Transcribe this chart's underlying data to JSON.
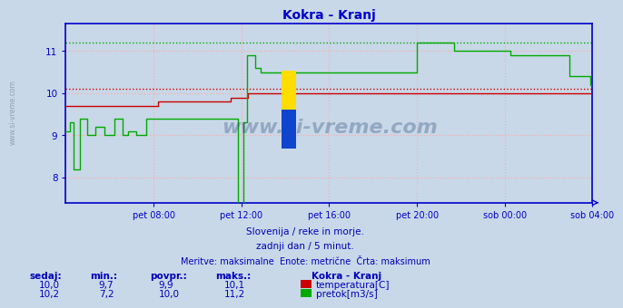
{
  "title": "Kokra - Kranj",
  "title_color": "#0000cc",
  "bg_color": "#c8d8e8",
  "plot_bg_color": "#c8d8e8",
  "grid_color": "#ffaaaa",
  "axis_color": "#0000cc",
  "tick_label_color": "#0000cc",
  "ylim": [
    7.4,
    11.65
  ],
  "yticks": [
    8,
    9,
    10,
    11
  ],
  "temp_color": "#cc0000",
  "flow_color": "#00aa00",
  "temp_avg": 10.1,
  "flow_max": 11.2,
  "watermark": "www.si-vreme.com",
  "watermark_color": "#1a3a6b",
  "footer_line1": "Slovenija / reke in morje.",
  "footer_line2": "zadnji dan / 5 minut.",
  "footer_line3": "Meritve: maksimalne  Enote: metrične  Črta: maksimum",
  "footer_color": "#0000bb",
  "legend_title": "Kokra - Kranj",
  "legend_temp_label": "temperatura[C]",
  "legend_flow_label": "pretok[m3/s]",
  "table_headers": [
    "sedaj:",
    "min.:",
    "povpr.:",
    "maks.:"
  ],
  "table_temp": [
    "10,0",
    "9,7",
    "9,9",
    "10,1"
  ],
  "table_flow": [
    "10,2",
    "7,2",
    "10,0",
    "11,2"
  ],
  "table_color": "#0000bb",
  "xtick_labels": [
    "pet 08:00",
    "pet 12:00",
    "pet 16:00",
    "pet 20:00",
    "sob 00:00",
    "sob 04:00"
  ],
  "sidebar_text": "www.si-vreme.com",
  "sidebar_color": "#8899aa",
  "temp_data": [
    9.7,
    9.7,
    9.7,
    9.7,
    9.7,
    9.7,
    9.7,
    9.7,
    9.7,
    9.7,
    9.7,
    9.7,
    9.7,
    9.7,
    9.7,
    9.7,
    9.7,
    9.7,
    9.7,
    9.7,
    9.7,
    9.7,
    9.7,
    9.7,
    9.7,
    9.7,
    9.7,
    9.7,
    9.7,
    9.7,
    9.7,
    9.7,
    9.7,
    9.7,
    9.7,
    9.7,
    9.7,
    9.7,
    9.7,
    9.7,
    9.7,
    9.7,
    9.7,
    9.7,
    9.7,
    9.7,
    9.7,
    9.7,
    9.8,
    9.8,
    9.8,
    9.8,
    9.8,
    9.8,
    9.8,
    9.8,
    9.8,
    9.8,
    9.8,
    9.8,
    9.8,
    9.8,
    9.8,
    9.8,
    9.8,
    9.8,
    9.8,
    9.8,
    9.8,
    9.8,
    9.8,
    9.8,
    9.8,
    9.8,
    9.8,
    9.8,
    9.8,
    9.8,
    9.8,
    9.8,
    9.8,
    9.8,
    9.8,
    9.8,
    9.8,
    9.8,
    9.9,
    9.9,
    9.9,
    9.9,
    9.9,
    9.9,
    9.9,
    9.9,
    9.9,
    10.0,
    10.0,
    10.0,
    10.0,
    10.0,
    10.0,
    10.0,
    10.0,
    10.0,
    10.0,
    10.0,
    10.0,
    10.0,
    10.0,
    10.0,
    10.0,
    10.0,
    10.0,
    10.0,
    10.0,
    10.0,
    10.0,
    10.0,
    10.0,
    10.0,
    10.0,
    10.0,
    10.0,
    10.0,
    10.0,
    10.0,
    10.0,
    10.0,
    10.0,
    10.0,
    10.0,
    10.0,
    10.0,
    10.0,
    10.0,
    10.0,
    10.0,
    10.0,
    10.0,
    10.0,
    10.0,
    10.0,
    10.0,
    10.0,
    10.0,
    10.0,
    10.0,
    10.0,
    10.0,
    10.0,
    10.0,
    10.0,
    10.0,
    10.0,
    10.0,
    10.0,
    10.0,
    10.0,
    10.0,
    10.0,
    10.0,
    10.0,
    10.0,
    10.0,
    10.0,
    10.0,
    10.0,
    10.0,
    10.0,
    10.0,
    10.0,
    10.0,
    10.0,
    10.0,
    10.0,
    10.0,
    10.0,
    10.0,
    10.0,
    10.0,
    10.0,
    10.0,
    10.0,
    10.0,
    10.0,
    10.0,
    10.0,
    10.0,
    10.0,
    10.0,
    10.0,
    10.0,
    10.0,
    10.0,
    10.0,
    10.0,
    10.0,
    10.0,
    10.0,
    10.0,
    10.0,
    10.0,
    10.0,
    10.0,
    10.0,
    10.0,
    10.0,
    10.0,
    10.0,
    10.0,
    10.0,
    10.0,
    10.0,
    10.0,
    10.0,
    10.0,
    10.0,
    10.0,
    10.0,
    10.0,
    10.0,
    10.0,
    10.0,
    10.0,
    10.0,
    10.0,
    10.0,
    10.0,
    10.0,
    10.0,
    10.0,
    10.0,
    10.0,
    10.0,
    10.0,
    10.0,
    10.0,
    10.0,
    10.0,
    10.0,
    10.0,
    10.0,
    10.0,
    10.0,
    10.0,
    10.0,
    10.0,
    10.0,
    10.0,
    10.0,
    10.0,
    10.0,
    10.0,
    10.0,
    10.0,
    10.0,
    10.0,
    10.0,
    10.0,
    10.0,
    10.0,
    10.0,
    10.0,
    10.0,
    10.0,
    10.0,
    10.0,
    10.0,
    10.0,
    10.0,
    10.0,
    10.0,
    10.0,
    10.0,
    10.0,
    10.0
  ],
  "flow_data": [
    9.1,
    9.1,
    9.3,
    9.3,
    8.2,
    8.2,
    8.2,
    9.4,
    9.4,
    9.4,
    9.4,
    9.0,
    9.0,
    9.0,
    9.0,
    9.2,
    9.2,
    9.2,
    9.2,
    9.2,
    9.0,
    9.0,
    9.0,
    9.0,
    9.0,
    9.4,
    9.4,
    9.4,
    9.4,
    9.0,
    9.0,
    9.0,
    9.1,
    9.1,
    9.1,
    9.1,
    9.0,
    9.0,
    9.0,
    9.0,
    9.0,
    9.4,
    9.4,
    9.4,
    9.4,
    9.4,
    9.4,
    9.4,
    9.4,
    9.4,
    9.4,
    9.4,
    9.4,
    9.4,
    9.4,
    9.4,
    9.4,
    9.4,
    9.4,
    9.4,
    9.4,
    9.4,
    9.4,
    9.4,
    9.4,
    9.4,
    9.4,
    9.4,
    9.4,
    9.4,
    9.4,
    9.4,
    9.4,
    9.4,
    9.4,
    9.4,
    9.4,
    9.4,
    9.4,
    9.4,
    9.4,
    9.4,
    9.4,
    9.4,
    9.4,
    9.4,
    9.4,
    9.4,
    7.2,
    7.2,
    7.2,
    9.3,
    9.3,
    10.9,
    10.9,
    10.9,
    10.9,
    10.6,
    10.6,
    10.6,
    10.5,
    10.5,
    10.5,
    10.5,
    10.5,
    10.5,
    10.5,
    10.5,
    10.5,
    10.5,
    10.5,
    10.5,
    10.5,
    10.5,
    10.5,
    10.5,
    10.5,
    10.5,
    10.5,
    10.5,
    10.5,
    10.5,
    10.5,
    10.5,
    10.5,
    10.5,
    10.5,
    10.5,
    10.5,
    10.5,
    10.5,
    10.5,
    10.5,
    10.5,
    10.5,
    10.5,
    10.5,
    10.5,
    10.5,
    10.5,
    10.5,
    10.5,
    10.5,
    10.5,
    10.5,
    10.5,
    10.5,
    10.5,
    10.5,
    10.5,
    10.5,
    10.5,
    10.5,
    10.5,
    10.5,
    10.5,
    10.5,
    10.5,
    10.5,
    10.5,
    10.5,
    10.5,
    10.5,
    10.5,
    10.5,
    10.5,
    10.5,
    10.5,
    10.5,
    10.5,
    10.5,
    10.5,
    10.5,
    10.5,
    10.5,
    10.5,
    10.5,
    10.5,
    10.5,
    10.5,
    11.2,
    11.2,
    11.2,
    11.2,
    11.2,
    11.2,
    11.2,
    11.2,
    11.2,
    11.2,
    11.2,
    11.2,
    11.2,
    11.2,
    11.2,
    11.2,
    11.2,
    11.2,
    11.2,
    11.0,
    11.0,
    11.0,
    11.0,
    11.0,
    11.0,
    11.0,
    11.0,
    11.0,
    11.0,
    11.0,
    11.0,
    11.0,
    11.0,
    11.0,
    11.0,
    11.0,
    11.0,
    11.0,
    11.0,
    11.0,
    11.0,
    11.0,
    11.0,
    11.0,
    11.0,
    11.0,
    11.0,
    11.0,
    10.9,
    10.9,
    10.9,
    10.9,
    10.9,
    10.9,
    10.9,
    10.9,
    10.9,
    10.9,
    10.9,
    10.9,
    10.9,
    10.9,
    10.9,
    10.9,
    10.9,
    10.9,
    10.9,
    10.9,
    10.9,
    10.9,
    10.9,
    10.9,
    10.9,
    10.9,
    10.9,
    10.9,
    10.9,
    10.9,
    10.4,
    10.4,
    10.4,
    10.4,
    10.4,
    10.4,
    10.4,
    10.4,
    10.4,
    10.4,
    10.4,
    10.2,
    10.2
  ]
}
